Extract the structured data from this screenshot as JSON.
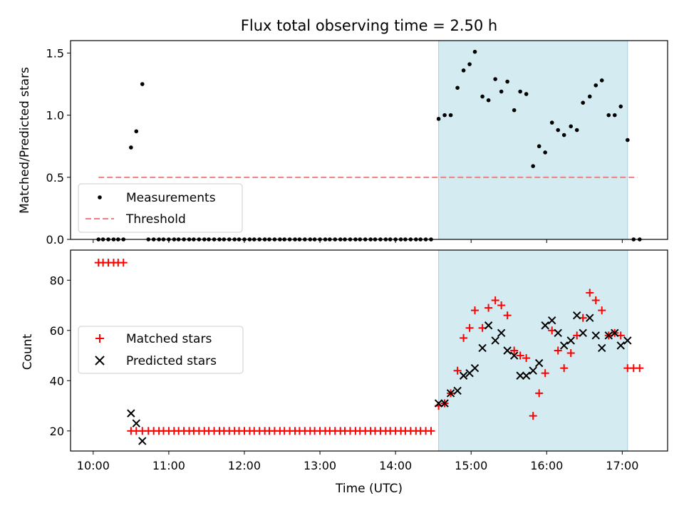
{
  "figure": {
    "title": "Flux total observing time = 2.50 h",
    "xlabel": "Time (UTC)"
  },
  "chart_data": [
    {
      "type": "scatter",
      "panel": "top",
      "ylabel": "Matched/Predicted stars",
      "xlim": [
        9.7,
        17.6
      ],
      "ylim": [
        0,
        1.6
      ],
      "yticks": [
        0.0,
        0.5,
        1.0,
        1.5
      ],
      "ytick_labels": [
        "0.0",
        "0.5",
        "1.0",
        "1.5"
      ],
      "grid": false,
      "legend": "lower-left",
      "shaded_span": [
        14.57,
        17.07
      ],
      "shaded_color": "#d3ebf1",
      "series": [
        {
          "name": "Measurements",
          "marker": "dot",
          "color": "#000000",
          "x": [
            10.07,
            10.13,
            10.2,
            10.27,
            10.33,
            10.4,
            10.5,
            10.57,
            10.65,
            10.73,
            10.8,
            10.87,
            10.93,
            11.0,
            11.07,
            11.13,
            11.2,
            11.27,
            11.33,
            11.4,
            11.47,
            11.53,
            11.6,
            11.67,
            11.73,
            11.8,
            11.87,
            11.93,
            12.0,
            12.07,
            12.13,
            12.2,
            12.27,
            12.33,
            12.4,
            12.47,
            12.53,
            12.6,
            12.67,
            12.73,
            12.8,
            12.87,
            12.93,
            13.0,
            13.07,
            13.13,
            13.2,
            13.27,
            13.33,
            13.4,
            13.47,
            13.53,
            13.6,
            13.67,
            13.73,
            13.8,
            13.87,
            13.93,
            14.0,
            14.07,
            14.13,
            14.2,
            14.27,
            14.33,
            14.4,
            14.47,
            14.57,
            14.65,
            14.73,
            14.82,
            14.9,
            14.98,
            15.05,
            15.15,
            15.23,
            15.32,
            15.4,
            15.48,
            15.57,
            15.65,
            15.73,
            15.82,
            15.9,
            15.98,
            16.07,
            16.15,
            16.23,
            16.32,
            16.4,
            16.48,
            16.57,
            16.65,
            16.73,
            16.82,
            16.9,
            16.98,
            17.07,
            17.15,
            17.23
          ],
          "y": [
            0,
            0,
            0,
            0,
            0,
            0,
            0.74,
            0.87,
            1.25,
            0,
            0,
            0,
            0,
            0,
            0,
            0,
            0,
            0,
            0,
            0,
            0,
            0,
            0,
            0,
            0,
            0,
            0,
            0,
            0,
            0,
            0,
            0,
            0,
            0,
            0,
            0,
            0,
            0,
            0,
            0,
            0,
            0,
            0,
            0,
            0,
            0,
            0,
            0,
            0,
            0,
            0,
            0,
            0,
            0,
            0,
            0,
            0,
            0,
            0,
            0,
            0,
            0,
            0,
            0,
            0,
            0,
            0.97,
            1.0,
            1.0,
            1.22,
            1.36,
            1.41,
            1.51,
            1.15,
            1.12,
            1.29,
            1.19,
            1.27,
            1.04,
            1.19,
            1.17,
            0.59,
            0.75,
            0.7,
            0.94,
            0.88,
            0.84,
            0.91,
            0.88,
            1.1,
            1.15,
            1.24,
            1.28,
            1.0,
            1.0,
            1.07,
            0.8,
            0,
            0
          ]
        },
        {
          "name": "Threshold",
          "marker": "dashed-line",
          "color": "#f08080",
          "x": [
            10.07,
            17.2
          ],
          "y": [
            0.5,
            0.5
          ]
        }
      ]
    },
    {
      "type": "scatter",
      "panel": "bottom",
      "ylabel": "Count",
      "xlim": [
        9.7,
        17.6
      ],
      "ylim": [
        12,
        92
      ],
      "yticks": [
        20,
        40,
        60,
        80
      ],
      "ytick_labels": [
        "20",
        "40",
        "60",
        "80"
      ],
      "xticks": [
        10,
        11,
        12,
        13,
        14,
        15,
        16,
        17
      ],
      "xtick_labels": [
        "10:00",
        "11:00",
        "12:00",
        "13:00",
        "14:00",
        "15:00",
        "16:00",
        "17:00"
      ],
      "grid": false,
      "legend": "center-left",
      "shaded_span": [
        14.57,
        17.07
      ],
      "shaded_color": "#d3ebf1",
      "series": [
        {
          "name": "Matched stars",
          "marker": "plus",
          "color": "#ff0000",
          "x": [
            10.07,
            10.13,
            10.2,
            10.27,
            10.33,
            10.4,
            10.5,
            10.57,
            10.65,
            10.73,
            10.8,
            10.87,
            10.93,
            11.0,
            11.07,
            11.13,
            11.2,
            11.27,
            11.33,
            11.4,
            11.47,
            11.53,
            11.6,
            11.67,
            11.73,
            11.8,
            11.87,
            11.93,
            12.0,
            12.07,
            12.13,
            12.2,
            12.27,
            12.33,
            12.4,
            12.47,
            12.53,
            12.6,
            12.67,
            12.73,
            12.8,
            12.87,
            12.93,
            13.0,
            13.07,
            13.13,
            13.2,
            13.27,
            13.33,
            13.4,
            13.47,
            13.53,
            13.6,
            13.67,
            13.73,
            13.8,
            13.87,
            13.93,
            14.0,
            14.07,
            14.13,
            14.2,
            14.27,
            14.33,
            14.4,
            14.47,
            14.57,
            14.65,
            14.73,
            14.82,
            14.9,
            14.98,
            15.05,
            15.15,
            15.23,
            15.32,
            15.4,
            15.48,
            15.57,
            15.65,
            15.73,
            15.82,
            15.9,
            15.98,
            16.07,
            16.15,
            16.23,
            16.32,
            16.4,
            16.48,
            16.57,
            16.65,
            16.73,
            16.82,
            16.9,
            16.98,
            17.07,
            17.15,
            17.23
          ],
          "y": [
            87,
            87,
            87,
            87,
            87,
            87,
            20,
            20,
            20,
            20,
            20,
            20,
            20,
            20,
            20,
            20,
            20,
            20,
            20,
            20,
            20,
            20,
            20,
            20,
            20,
            20,
            20,
            20,
            20,
            20,
            20,
            20,
            20,
            20,
            20,
            20,
            20,
            20,
            20,
            20,
            20,
            20,
            20,
            20,
            20,
            20,
            20,
            20,
            20,
            20,
            20,
            20,
            20,
            20,
            20,
            20,
            20,
            20,
            20,
            20,
            20,
            20,
            20,
            20,
            20,
            20,
            30,
            31,
            35,
            44,
            57,
            61,
            68,
            61,
            69,
            72,
            70,
            66,
            52,
            50,
            49,
            26,
            35,
            43,
            60,
            52,
            45,
            51,
            58,
            65,
            75,
            72,
            68,
            58,
            59,
            58,
            45,
            45,
            45
          ]
        },
        {
          "name": "Predicted stars",
          "marker": "x",
          "color": "#000000",
          "x": [
            10.5,
            10.57,
            10.65,
            14.57,
            14.65,
            14.73,
            14.82,
            14.9,
            14.98,
            15.05,
            15.15,
            15.23,
            15.32,
            15.4,
            15.48,
            15.57,
            15.65,
            15.73,
            15.82,
            15.9,
            15.98,
            16.07,
            16.15,
            16.23,
            16.32,
            16.4,
            16.48,
            16.57,
            16.65,
            16.73,
            16.82,
            16.9,
            16.98,
            17.07
          ],
          "y": [
            27,
            23,
            16,
            31,
            31,
            35,
            36,
            42,
            43,
            45,
            53,
            62,
            56,
            59,
            52,
            50,
            42,
            42,
            44,
            47,
            62,
            64,
            59,
            54,
            56,
            66,
            59,
            65,
            58,
            53,
            58,
            59,
            54,
            56
          ]
        }
      ]
    }
  ]
}
